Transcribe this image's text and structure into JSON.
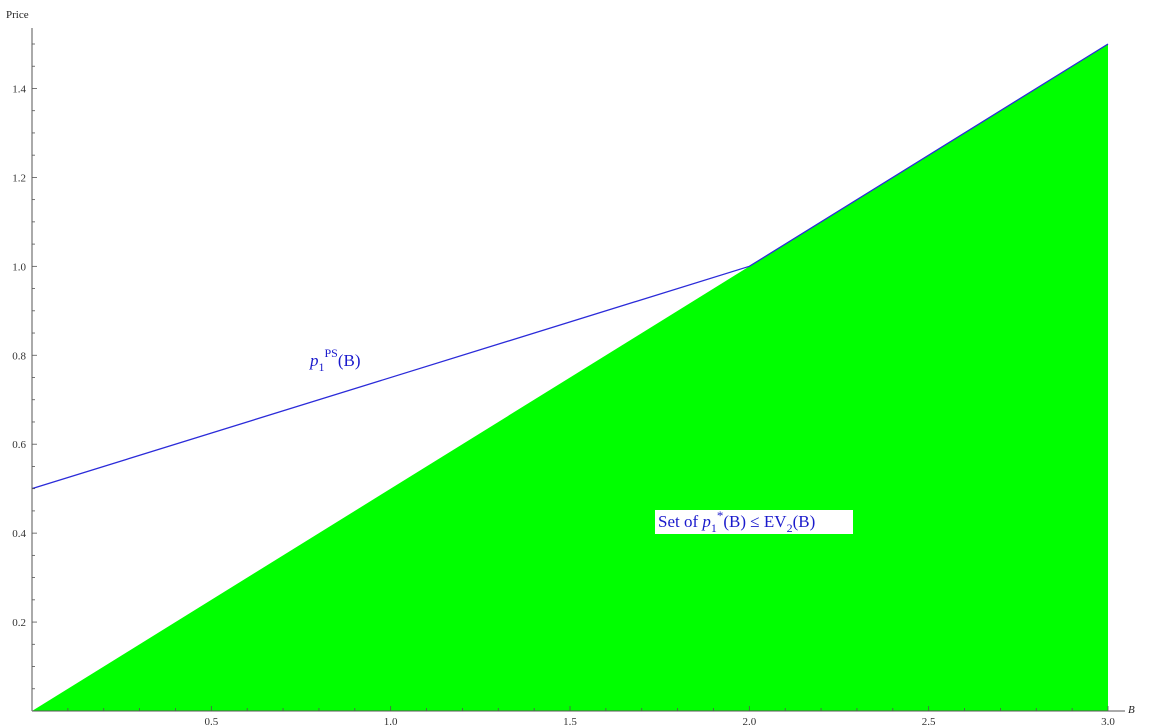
{
  "chart_data": {
    "type": "area",
    "xlabel": "B",
    "ylabel": "Price",
    "xlim": [
      0,
      3.05
    ],
    "ylim": [
      0,
      1.52
    ],
    "x_ticks": [
      0.5,
      1.0,
      1.5,
      2.0,
      2.5,
      3.0
    ],
    "x_tick_labels": [
      "0.5",
      "1.0",
      "1.5",
      "2.0",
      "2.5",
      "3.0"
    ],
    "y_ticks": [
      0.2,
      0.4,
      0.6,
      0.8,
      1.0,
      1.2,
      1.4
    ],
    "y_tick_labels": [
      "0.2",
      "0.4",
      "0.6",
      "0.8",
      "1.0",
      "1.2",
      "1.4"
    ],
    "grid": false,
    "series": [
      {
        "name": "p1^PS(B)",
        "kind": "line",
        "color": "#2b2bd9",
        "x": [
          0,
          2,
          3
        ],
        "y": [
          0.5,
          1.0,
          1.5
        ]
      },
      {
        "name": "Set of p1*(B) ≤ EV2(B)",
        "kind": "filled-region",
        "color": "#00ff00",
        "x": [
          0,
          3
        ],
        "y": [
          0,
          1.5
        ]
      }
    ],
    "annotations": {
      "line_label": {
        "base": "p",
        "sub": "1",
        "sup": "PS",
        "tail": "(B)"
      },
      "region_label": {
        "prefix": "Set of ",
        "p_base": "p",
        "p_sub": "1",
        "p_sup": "*",
        "p_tail": "(B) ≤ ",
        "ev_base": "EV",
        "ev_sub": "2",
        "ev_tail": "(B)"
      }
    }
  }
}
